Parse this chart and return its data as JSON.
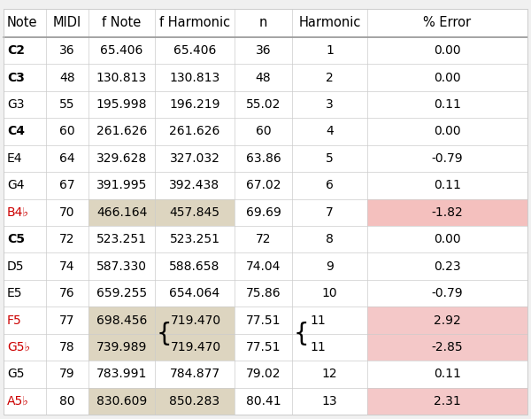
{
  "columns": [
    "Note",
    "MIDI",
    "f Note",
    "f Harmonic",
    "n",
    "Harmonic",
    "% Error"
  ],
  "rows": [
    {
      "note": "C2",
      "midi": "36",
      "f_note": "65.406",
      "f_harm": "65.406",
      "n": "36",
      "harmonic": "1",
      "pct_err": "0.00",
      "note_bold": true,
      "note_red": false,
      "f_bg": "white",
      "err_bg": "white",
      "brace": false
    },
    {
      "note": "C3",
      "midi": "48",
      "f_note": "130.813",
      "f_harm": "130.813",
      "n": "48",
      "harmonic": "2",
      "pct_err": "0.00",
      "note_bold": true,
      "note_red": false,
      "f_bg": "white",
      "err_bg": "white",
      "brace": false
    },
    {
      "note": "G3",
      "midi": "55",
      "f_note": "195.998",
      "f_harm": "196.219",
      "n": "55.02",
      "harmonic": "3",
      "pct_err": "0.11",
      "note_bold": false,
      "note_red": false,
      "f_bg": "white",
      "err_bg": "white",
      "brace": false
    },
    {
      "note": "C4",
      "midi": "60",
      "f_note": "261.626",
      "f_harm": "261.626",
      "n": "60",
      "harmonic": "4",
      "pct_err": "0.00",
      "note_bold": true,
      "note_red": false,
      "f_bg": "white",
      "err_bg": "white",
      "brace": false
    },
    {
      "note": "E4",
      "midi": "64",
      "f_note": "329.628",
      "f_harm": "327.032",
      "n": "63.86",
      "harmonic": "5",
      "pct_err": "-0.79",
      "note_bold": false,
      "note_red": false,
      "f_bg": "white",
      "err_bg": "white",
      "brace": false
    },
    {
      "note": "G4",
      "midi": "67",
      "f_note": "391.995",
      "f_harm": "392.438",
      "n": "67.02",
      "harmonic": "6",
      "pct_err": "0.11",
      "note_bold": false,
      "note_red": false,
      "f_bg": "white",
      "err_bg": "white",
      "brace": false
    },
    {
      "note": "B4♭",
      "midi": "70",
      "f_note": "466.164",
      "f_harm": "457.845",
      "n": "69.69",
      "harmonic": "7",
      "pct_err": "-1.82",
      "note_bold": false,
      "note_red": true,
      "f_bg": "#ddd5c0",
      "err_bg": "#f4c0be",
      "brace": false
    },
    {
      "note": "C5",
      "midi": "72",
      "f_note": "523.251",
      "f_harm": "523.251",
      "n": "72",
      "harmonic": "8",
      "pct_err": "0.00",
      "note_bold": true,
      "note_red": false,
      "f_bg": "white",
      "err_bg": "white",
      "brace": false
    },
    {
      "note": "D5",
      "midi": "74",
      "f_note": "587.330",
      "f_harm": "588.658",
      "n": "74.04",
      "harmonic": "9",
      "pct_err": "0.23",
      "note_bold": false,
      "note_red": false,
      "f_bg": "white",
      "err_bg": "white",
      "brace": false
    },
    {
      "note": "E5",
      "midi": "76",
      "f_note": "659.255",
      "f_harm": "654.064",
      "n": "75.86",
      "harmonic": "10",
      "pct_err": "-0.79",
      "note_bold": false,
      "note_red": false,
      "f_bg": "white",
      "err_bg": "white",
      "brace": false
    },
    {
      "note": "F5",
      "midi": "77",
      "f_note": "698.456",
      "f_harm": "719.470",
      "n": "77.51",
      "harmonic": "11",
      "pct_err": "2.92",
      "note_bold": false,
      "note_red": true,
      "f_bg": "#ddd5c0",
      "err_bg": "#f4c8c8",
      "brace": true
    },
    {
      "note": "G5♭",
      "midi": "78",
      "f_note": "739.989",
      "f_harm": "719.470",
      "n": "77.51",
      "harmonic": "11",
      "pct_err": "-2.85",
      "note_bold": false,
      "note_red": true,
      "f_bg": "#ddd5c0",
      "err_bg": "#f4c8c8",
      "brace": true
    },
    {
      "note": "G5",
      "midi": "79",
      "f_note": "783.991",
      "f_harm": "784.877",
      "n": "79.02",
      "harmonic": "12",
      "pct_err": "0.11",
      "note_bold": false,
      "note_red": false,
      "f_bg": "white",
      "err_bg": "white",
      "brace": false
    },
    {
      "note": "A5♭",
      "midi": "80",
      "f_note": "830.609",
      "f_harm": "850.283",
      "n": "80.41",
      "harmonic": "13",
      "pct_err": "2.31",
      "note_bold": false,
      "note_red": true,
      "f_bg": "#ddd5c0",
      "err_bg": "#f4c8c8",
      "brace": false
    }
  ],
  "bg_color": "#f0f0f0",
  "table_bg": "white",
  "header_line_color": "#999999",
  "grid_color": "#cccccc",
  "brace_rows": [
    10,
    11
  ],
  "figsize": [
    6.0,
    4.73
  ],
  "dpi": 100
}
